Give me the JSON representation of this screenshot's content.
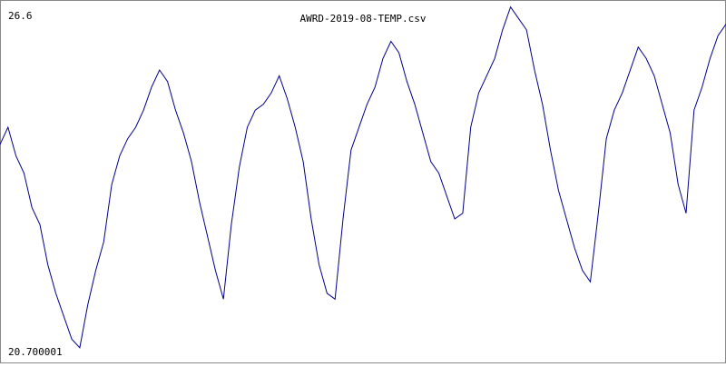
{
  "chart_data": {
    "type": "line",
    "title": "AWRD-2019-08-TEMP.csv",
    "xlabel": "",
    "ylabel": "",
    "ylim": [
      20.700001,
      26.6
    ],
    "y_max_label": "26.6",
    "y_min_label": "20.700001",
    "grid": false,
    "legend": "none",
    "line_color": "#00008b",
    "series": [
      {
        "values": [
          24.3,
          24.6,
          24.1,
          23.8,
          23.2,
          22.9,
          22.2,
          21.7,
          21.3,
          20.9,
          20.75,
          21.5,
          22.1,
          22.6,
          23.6,
          24.1,
          24.4,
          24.6,
          24.9,
          25.3,
          25.6,
          25.4,
          24.9,
          24.5,
          24.0,
          23.3,
          22.7,
          22.1,
          21.6,
          22.9,
          23.9,
          24.6,
          24.9,
          25.0,
          25.2,
          25.5,
          25.1,
          24.6,
          24.0,
          23.0,
          22.2,
          21.7,
          21.6,
          23.0,
          24.2,
          24.6,
          25.0,
          25.3,
          25.8,
          26.1,
          25.9,
          25.4,
          25.0,
          24.5,
          24.0,
          23.8,
          23.4,
          23.0,
          23.1,
          24.6,
          25.2,
          25.5,
          25.8,
          26.3,
          26.7,
          26.5,
          26.3,
          25.6,
          25.0,
          24.2,
          23.5,
          23.0,
          22.5,
          22.1,
          21.9,
          23.1,
          24.4,
          24.9,
          25.2,
          25.6,
          26.0,
          25.8,
          25.5,
          25.0,
          24.5,
          23.6,
          23.1,
          24.9,
          25.3,
          25.8,
          26.2,
          26.4
        ]
      }
    ]
  }
}
